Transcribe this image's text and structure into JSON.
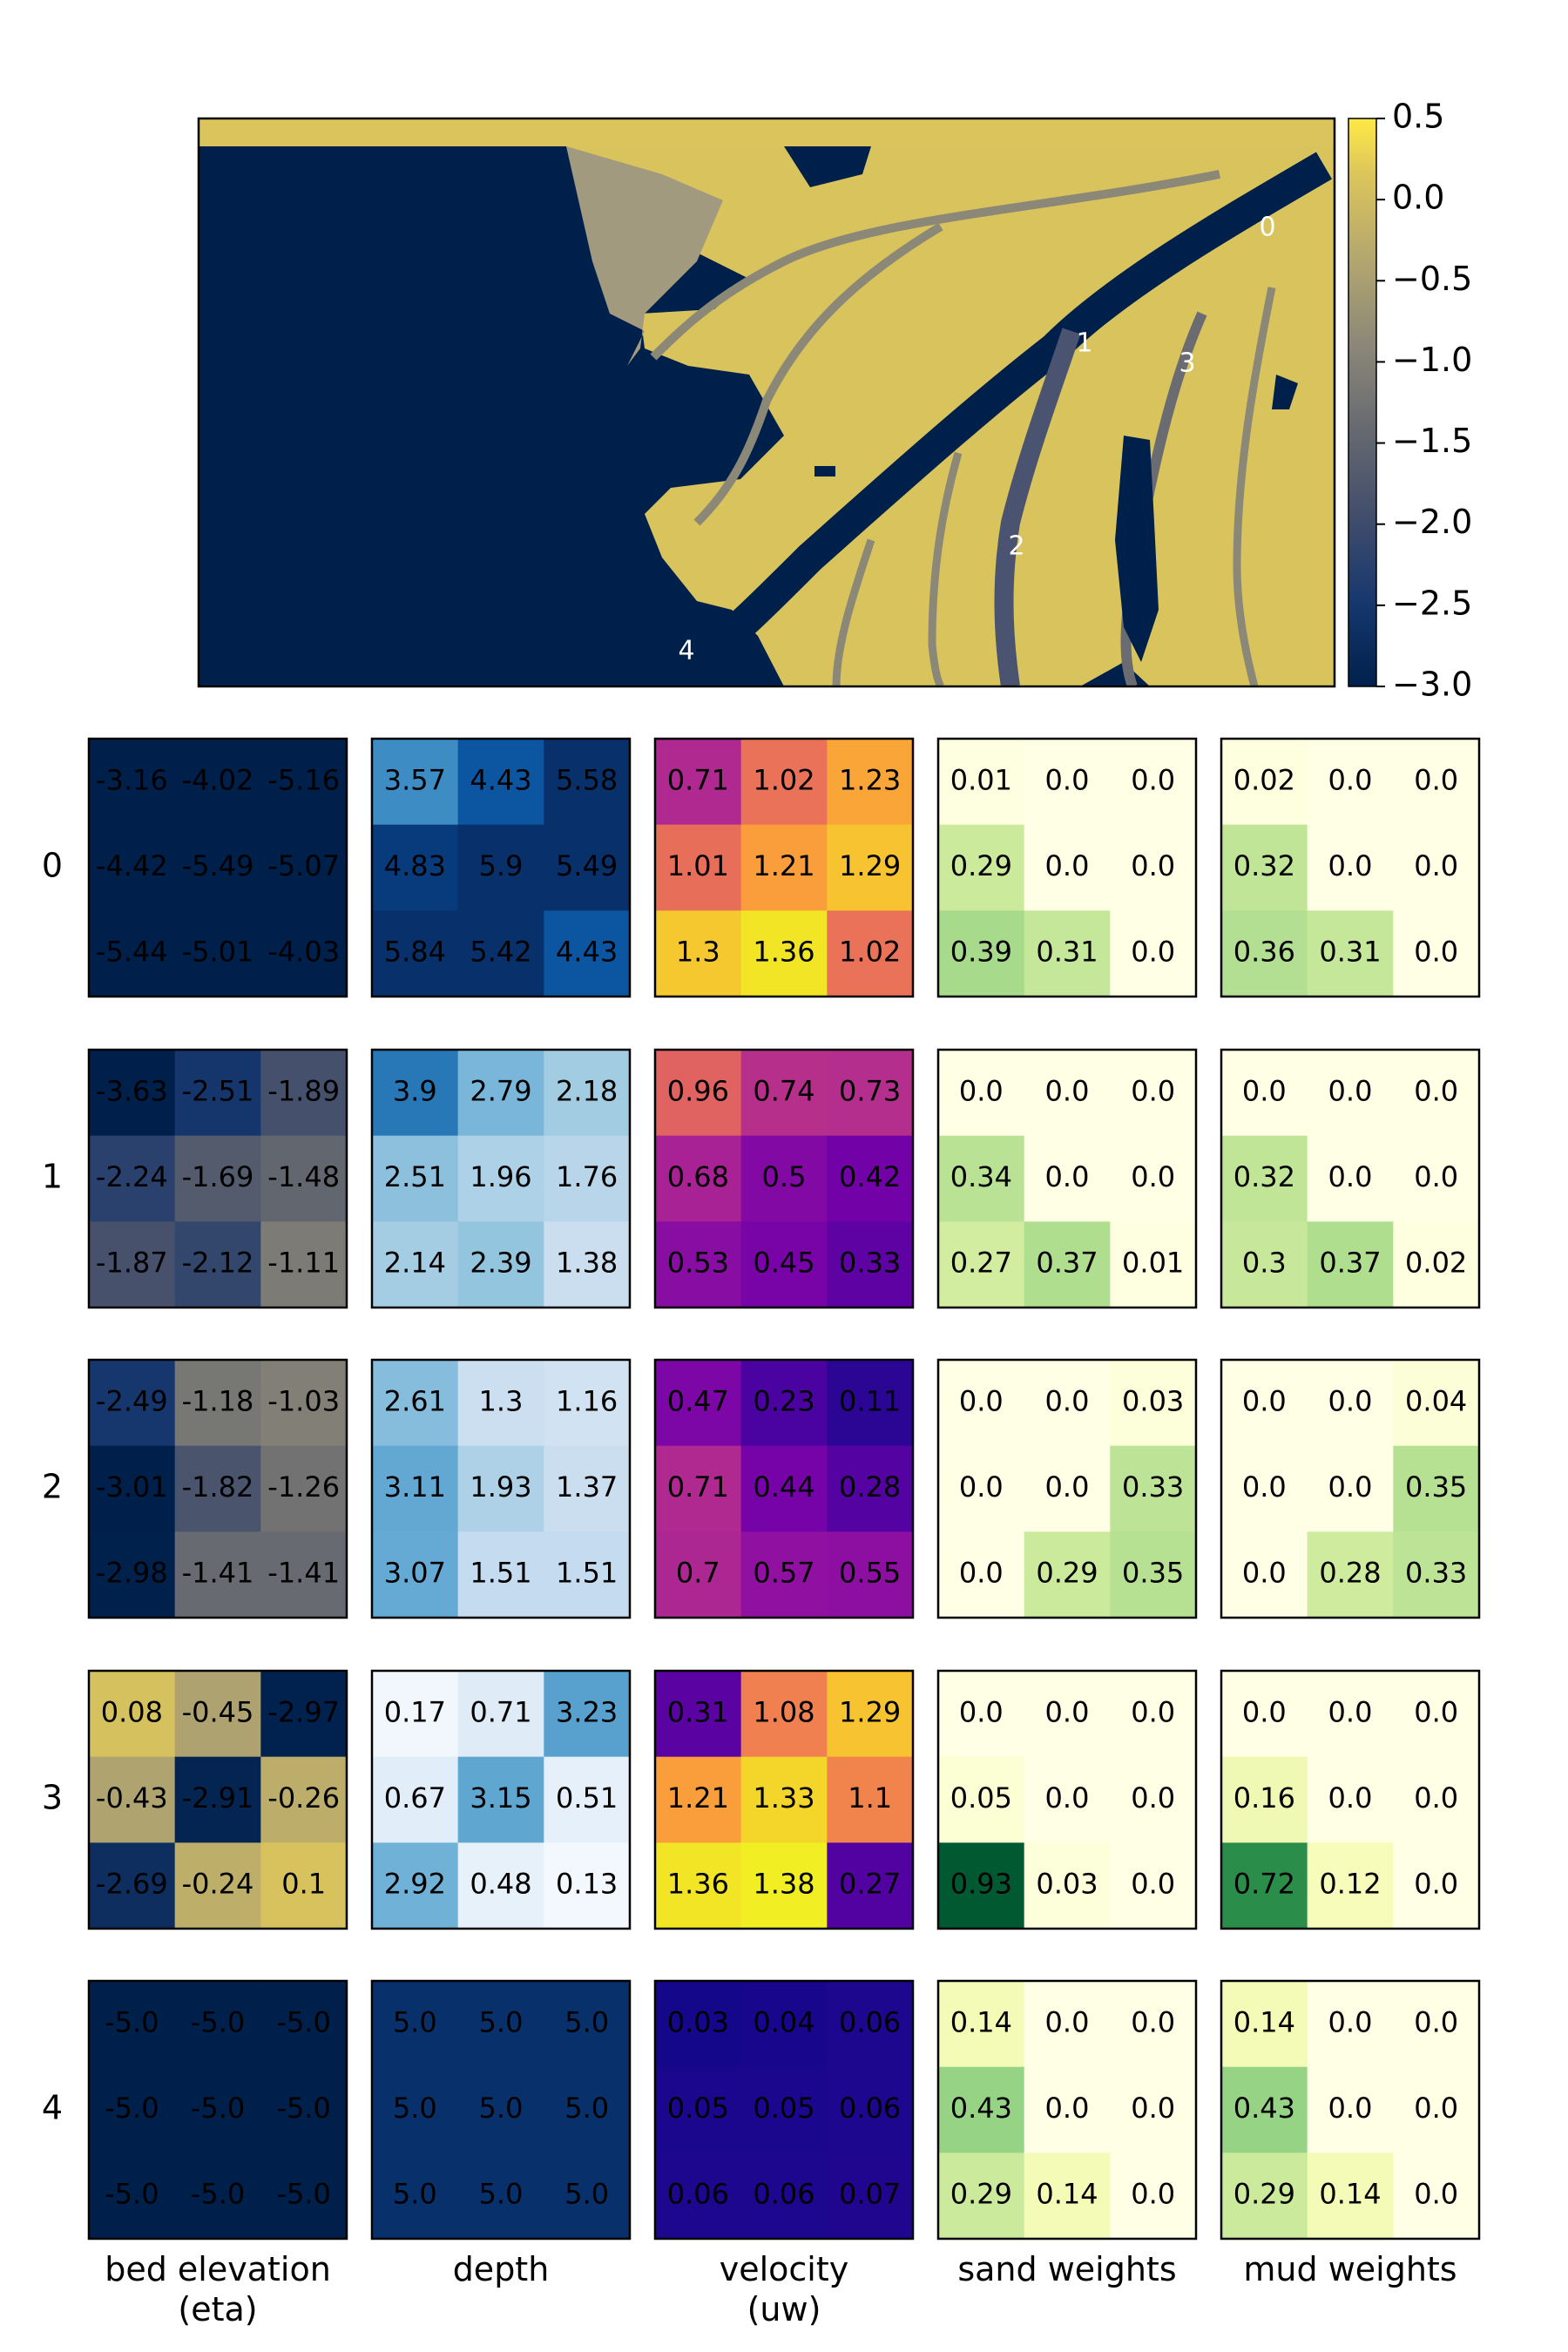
{
  "chart_data": [
    {
      "type": "heatmap",
      "title": "",
      "description_of_values": "map of bed elevation with five numbered sample locations",
      "colorbar": {
        "ticks": [
          "0.5",
          "0.0",
          "−0.5",
          "−1.0",
          "−1.5",
          "−2.0",
          "−2.5",
          "−3.0"
        ],
        "range": [
          -3.0,
          0.5
        ]
      },
      "locations": [
        "0",
        "1",
        "2",
        "3",
        "4"
      ]
    },
    {
      "type": "table",
      "columns": [
        {
          "label": "bed elevation\n(eta)",
          "colormap": "cividis",
          "range": [
            -3.0,
            0.5
          ]
        },
        {
          "label": "depth",
          "colormap": "Blues",
          "range": [
            0,
            5
          ]
        },
        {
          "label": "velocity\n(uw)",
          "colormap": "plasma",
          "range": [
            0,
            1.4
          ]
        },
        {
          "label": "sand weights",
          "colormap": "YlGn",
          "range": [
            0,
            1
          ]
        },
        {
          "label": "mud weights",
          "colormap": "YlGn",
          "range": [
            0,
            1
          ]
        }
      ],
      "row_labels": [
        "0",
        "1",
        "2",
        "3",
        "4"
      ],
      "cells": [
        [
          [
            [
              "-3.16",
              "-4.02",
              "-5.16"
            ],
            [
              "-4.42",
              "-5.49",
              "-5.07"
            ],
            [
              "-5.44",
              "-5.01",
              "-4.03"
            ]
          ],
          [
            [
              "3.57",
              "4.43",
              "5.58"
            ],
            [
              "4.83",
              "5.9",
              "5.49"
            ],
            [
              "5.84",
              "5.42",
              "4.43"
            ]
          ],
          [
            [
              "0.71",
              "1.02",
              "1.23"
            ],
            [
              "1.01",
              "1.21",
              "1.29"
            ],
            [
              "1.3",
              "1.36",
              "1.02"
            ]
          ],
          [
            [
              "0.01",
              "0.0",
              "0.0"
            ],
            [
              "0.29",
              "0.0",
              "0.0"
            ],
            [
              "0.39",
              "0.31",
              "0.0"
            ]
          ],
          [
            [
              "0.02",
              "0.0",
              "0.0"
            ],
            [
              "0.32",
              "0.0",
              "0.0"
            ],
            [
              "0.36",
              "0.31",
              "0.0"
            ]
          ]
        ],
        [
          [
            [
              "-3.63",
              "-2.51",
              "-1.89"
            ],
            [
              "-2.24",
              "-1.69",
              "-1.48"
            ],
            [
              "-1.87",
              "-2.12",
              "-1.11"
            ]
          ],
          [
            [
              "3.9",
              "2.79",
              "2.18"
            ],
            [
              "2.51",
              "1.96",
              "1.76"
            ],
            [
              "2.14",
              "2.39",
              "1.38"
            ]
          ],
          [
            [
              "0.96",
              "0.74",
              "0.73"
            ],
            [
              "0.68",
              "0.5",
              "0.42"
            ],
            [
              "0.53",
              "0.45",
              "0.33"
            ]
          ],
          [
            [
              "0.0",
              "0.0",
              "0.0"
            ],
            [
              "0.34",
              "0.0",
              "0.0"
            ],
            [
              "0.27",
              "0.37",
              "0.01"
            ]
          ],
          [
            [
              "0.0",
              "0.0",
              "0.0"
            ],
            [
              "0.32",
              "0.0",
              "0.0"
            ],
            [
              "0.3",
              "0.37",
              "0.02"
            ]
          ]
        ],
        [
          [
            [
              "-2.49",
              "-1.18",
              "-1.03"
            ],
            [
              "-3.01",
              "-1.82",
              "-1.26"
            ],
            [
              "-2.98",
              "-1.41",
              "-1.41"
            ]
          ],
          [
            [
              "2.61",
              "1.3",
              "1.16"
            ],
            [
              "3.11",
              "1.93",
              "1.37"
            ],
            [
              "3.07",
              "1.51",
              "1.51"
            ]
          ],
          [
            [
              "0.47",
              "0.23",
              "0.11"
            ],
            [
              "0.71",
              "0.44",
              "0.28"
            ],
            [
              "0.7",
              "0.57",
              "0.55"
            ]
          ],
          [
            [
              "0.0",
              "0.0",
              "0.03"
            ],
            [
              "0.0",
              "0.0",
              "0.33"
            ],
            [
              "0.0",
              "0.29",
              "0.35"
            ]
          ],
          [
            [
              "0.0",
              "0.0",
              "0.04"
            ],
            [
              "0.0",
              "0.0",
              "0.35"
            ],
            [
              "0.0",
              "0.28",
              "0.33"
            ]
          ]
        ],
        [
          [
            [
              "0.08",
              "-0.45",
              "-2.97"
            ],
            [
              "-0.43",
              "-2.91",
              "-0.26"
            ],
            [
              "-2.69",
              "-0.24",
              "0.1"
            ]
          ],
          [
            [
              "0.17",
              "0.71",
              "3.23"
            ],
            [
              "0.67",
              "3.15",
              "0.51"
            ],
            [
              "2.92",
              "0.48",
              "0.13"
            ]
          ],
          [
            [
              "0.31",
              "1.08",
              "1.29"
            ],
            [
              "1.21",
              "1.33",
              "1.1"
            ],
            [
              "1.36",
              "1.38",
              "0.27"
            ]
          ],
          [
            [
              "0.0",
              "0.0",
              "0.0"
            ],
            [
              "0.05",
              "0.0",
              "0.0"
            ],
            [
              "0.93",
              "0.03",
              "0.0"
            ]
          ],
          [
            [
              "0.0",
              "0.0",
              "0.0"
            ],
            [
              "0.16",
              "0.0",
              "0.0"
            ],
            [
              "0.72",
              "0.12",
              "0.0"
            ]
          ]
        ],
        [
          [
            [
              "-5.0",
              "-5.0",
              "-5.0"
            ],
            [
              "-5.0",
              "-5.0",
              "-5.0"
            ],
            [
              "-5.0",
              "-5.0",
              "-5.0"
            ]
          ],
          [
            [
              "5.0",
              "5.0",
              "5.0"
            ],
            [
              "5.0",
              "5.0",
              "5.0"
            ],
            [
              "5.0",
              "5.0",
              "5.0"
            ]
          ],
          [
            [
              "0.03",
              "0.04",
              "0.06"
            ],
            [
              "0.05",
              "0.05",
              "0.06"
            ],
            [
              "0.06",
              "0.06",
              "0.07"
            ]
          ],
          [
            [
              "0.14",
              "0.0",
              "0.0"
            ],
            [
              "0.43",
              "0.0",
              "0.0"
            ],
            [
              "0.29",
              "0.14",
              "0.0"
            ]
          ],
          [
            [
              "0.14",
              "0.0",
              "0.0"
            ],
            [
              "0.43",
              "0.0",
              "0.0"
            ],
            [
              "0.29",
              "0.14",
              "0.0"
            ]
          ]
        ]
      ]
    }
  ]
}
